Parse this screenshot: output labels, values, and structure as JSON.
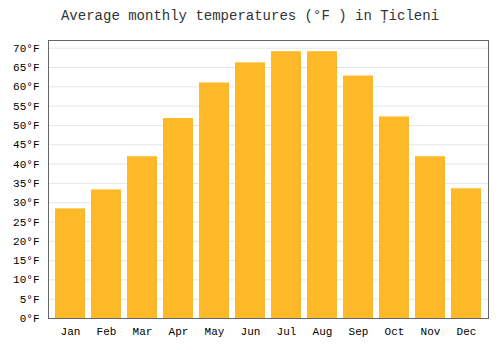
{
  "chart_data": {
    "type": "bar",
    "title": "Average monthly temperatures (°F ) in Ţicleni",
    "categories": [
      "Jan",
      "Feb",
      "Mar",
      "Apr",
      "May",
      "Jun",
      "Jul",
      "Aug",
      "Sep",
      "Oct",
      "Nov",
      "Dec"
    ],
    "values": [
      28.4,
      33.3,
      41.9,
      51.8,
      61.0,
      66.2,
      69.1,
      69.1,
      62.8,
      52.2,
      41.9,
      33.6
    ],
    "color": "#FDB927",
    "ylim": [
      0,
      72
    ],
    "yticks": [
      {
        "value": 0,
        "label": "0°F"
      },
      {
        "value": 5,
        "label": "5°F"
      },
      {
        "value": 10,
        "label": "10°F"
      },
      {
        "value": 15,
        "label": "15°F"
      },
      {
        "value": 20,
        "label": "20°F"
      },
      {
        "value": 25,
        "label": "25°F"
      },
      {
        "value": 30,
        "label": "30°F"
      },
      {
        "value": 35,
        "label": "35°F"
      },
      {
        "value": 40,
        "label": "40°F"
      },
      {
        "value": 45,
        "label": "45°F"
      },
      {
        "value": 50,
        "label": "50°F"
      },
      {
        "value": 55,
        "label": "55°F"
      },
      {
        "value": 60,
        "label": "60°F"
      },
      {
        "value": 65,
        "label": "65°F"
      },
      {
        "value": 70,
        "label": "70°F"
      }
    ],
    "grid": true
  }
}
